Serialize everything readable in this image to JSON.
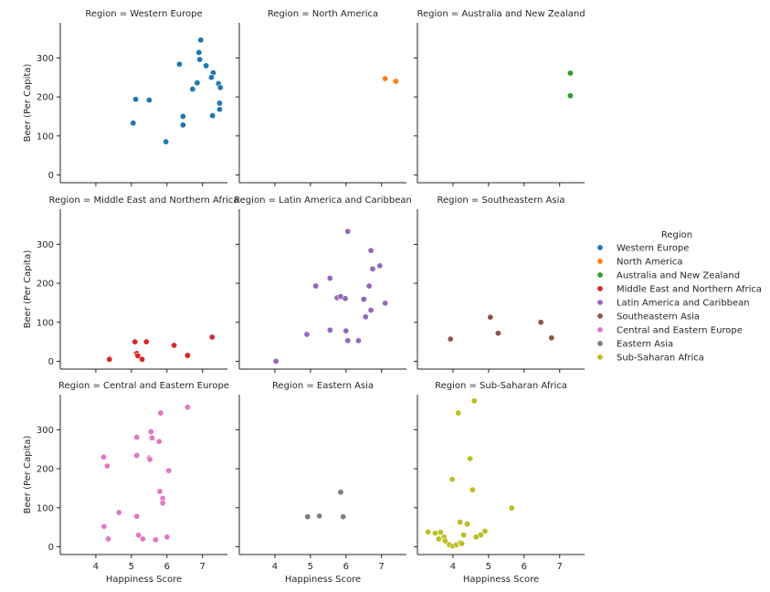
{
  "chart_data": {
    "type": "scatter",
    "xlabel": "Happiness Score",
    "ylabel": "Beer (Per Capita)",
    "xlim": [
      3.0,
      7.7
    ],
    "ylim": [
      -20,
      390
    ],
    "x_ticks": [
      4,
      5,
      6,
      7
    ],
    "y_ticks": [
      0,
      100,
      200,
      300
    ],
    "grid": false,
    "legend": {
      "title": "Region",
      "placement": "right",
      "entries": [
        "Western Europe",
        "North America",
        "Australia and New Zealand",
        "Middle East and Northern Africa",
        "Latin America and Caribbean",
        "Southeastern Asia",
        "Central and Eastern Europe",
        "Eastern Asia",
        "Sub-Saharan Africa"
      ]
    },
    "facets": [
      {
        "title": "Region = Western Europe",
        "color": "#1f77b4",
        "points": [
          [
            6.95,
            346
          ],
          [
            6.9,
            314
          ],
          [
            6.92,
            296
          ],
          [
            7.1,
            280
          ],
          [
            6.35,
            284
          ],
          [
            7.3,
            262
          ],
          [
            7.25,
            250
          ],
          [
            7.45,
            234
          ],
          [
            7.5,
            224
          ],
          [
            6.85,
            236
          ],
          [
            6.72,
            220
          ],
          [
            5.12,
            194
          ],
          [
            5.5,
            192
          ],
          [
            7.48,
            184
          ],
          [
            7.48,
            168
          ],
          [
            6.45,
            150
          ],
          [
            7.28,
            152
          ],
          [
            5.05,
            133
          ],
          [
            6.45,
            128
          ],
          [
            5.97,
            85
          ]
        ]
      },
      {
        "title": "Region = North America",
        "color": "#ff7f0e",
        "points": [
          [
            7.1,
            247
          ],
          [
            7.4,
            240
          ]
        ]
      },
      {
        "title": "Region = Australia and New Zealand",
        "color": "#2ca02c",
        "points": [
          [
            7.3,
            261
          ],
          [
            7.3,
            203
          ]
        ]
      },
      {
        "title": "Region = Middle East and Northern Africa",
        "color": "#d62728",
        "points": [
          [
            4.38,
            5
          ],
          [
            5.1,
            50
          ],
          [
            5.42,
            50
          ],
          [
            5.15,
            20
          ],
          [
            5.18,
            14
          ],
          [
            5.3,
            5
          ],
          [
            6.2,
            41
          ],
          [
            6.58,
            15
          ],
          [
            7.27,
            62
          ]
        ]
      },
      {
        "title": "Region = Latin America and Caribbean",
        "color": "#9467bd",
        "points": [
          [
            6.05,
            333
          ],
          [
            6.7,
            284
          ],
          [
            6.75,
            237
          ],
          [
            6.95,
            245
          ],
          [
            5.55,
            213
          ],
          [
            5.15,
            193
          ],
          [
            6.65,
            193
          ],
          [
            5.75,
            163
          ],
          [
            5.85,
            166
          ],
          [
            5.98,
            161
          ],
          [
            6.5,
            159
          ],
          [
            7.1,
            149
          ],
          [
            6.7,
            131
          ],
          [
            6.55,
            114
          ],
          [
            5.55,
            80
          ],
          [
            6.0,
            78
          ],
          [
            4.9,
            69
          ],
          [
            6.05,
            53
          ],
          [
            6.35,
            53
          ],
          [
            4.03,
            0
          ]
        ]
      },
      {
        "title": "Region = Southeastern Asia",
        "color": "#8c564b",
        "points": [
          [
            5.05,
            113
          ],
          [
            6.47,
            100
          ],
          [
            5.27,
            72
          ],
          [
            3.93,
            57
          ],
          [
            6.77,
            60
          ]
        ]
      },
      {
        "title": "Region = Central and Eastern Europe",
        "color": "#e377c2",
        "points": [
          [
            6.58,
            358
          ],
          [
            5.82,
            343
          ],
          [
            5.55,
            295
          ],
          [
            5.15,
            281
          ],
          [
            5.58,
            279
          ],
          [
            5.78,
            270
          ],
          [
            4.22,
            230
          ],
          [
            5.15,
            234
          ],
          [
            5.5,
            228
          ],
          [
            5.52,
            224
          ],
          [
            4.32,
            207
          ],
          [
            6.05,
            195
          ],
          [
            5.8,
            142
          ],
          [
            5.88,
            124
          ],
          [
            5.88,
            112
          ],
          [
            4.65,
            88
          ],
          [
            5.15,
            78
          ],
          [
            4.23,
            52
          ],
          [
            5.2,
            30
          ],
          [
            6.0,
            25
          ],
          [
            4.35,
            20
          ],
          [
            5.32,
            20
          ],
          [
            5.68,
            18
          ]
        ]
      },
      {
        "title": "Region = Eastern Asia",
        "color": "#7f7f7f",
        "points": [
          [
            4.92,
            77
          ],
          [
            5.25,
            79
          ],
          [
            5.85,
            140
          ],
          [
            5.92,
            77
          ]
        ]
      },
      {
        "title": "Region = Sub-Saharan Africa",
        "color": "#bcbd22",
        "points": [
          [
            4.6,
            374
          ],
          [
            4.15,
            343
          ],
          [
            4.48,
            226
          ],
          [
            4.55,
            146
          ],
          [
            3.98,
            173
          ],
          [
            5.65,
            99
          ],
          [
            3.3,
            38
          ],
          [
            3.5,
            35
          ],
          [
            3.65,
            37
          ],
          [
            3.6,
            20
          ],
          [
            3.75,
            25
          ],
          [
            3.78,
            15
          ],
          [
            4.2,
            63
          ],
          [
            4.4,
            58
          ],
          [
            4.3,
            30
          ],
          [
            4.78,
            30
          ],
          [
            4.9,
            40
          ],
          [
            4.65,
            25
          ],
          [
            3.9,
            5
          ],
          [
            4.0,
            2
          ],
          [
            4.1,
            5
          ],
          [
            4.2,
            10
          ],
          [
            4.25,
            8
          ]
        ]
      }
    ]
  }
}
